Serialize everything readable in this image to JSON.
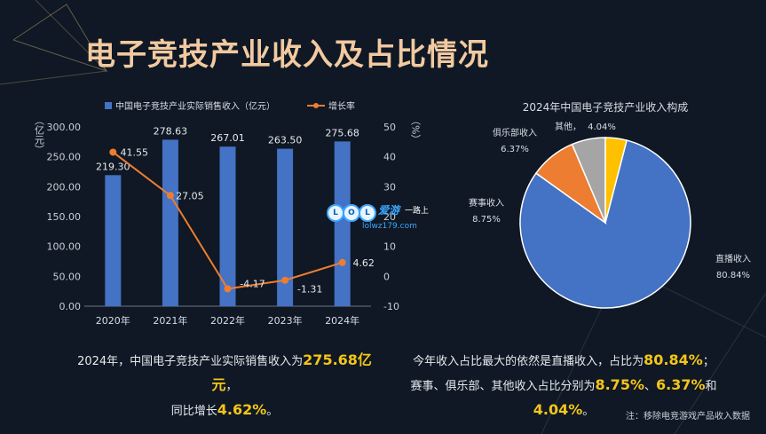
{
  "title": "电子竞技产业收入及占比情况",
  "colors": {
    "bar": "#4472c4",
    "line": "#ed7d31",
    "pie": [
      "#4472c4",
      "#ed7d31",
      "#a5a5a5",
      "#ffc000"
    ]
  },
  "chart_data": [
    {
      "type": "bar+line",
      "categories": [
        "2020年",
        "2021年",
        "2022年",
        "2023年",
        "2024年"
      ],
      "series": [
        {
          "name": "中国电子竞技产业实际销售收入（亿元）",
          "type": "bar",
          "axis": "left",
          "values": [
            219.3,
            278.63,
            267.01,
            263.5,
            275.68
          ],
          "labels": [
            "219.30",
            "278.63",
            "267.01",
            "263.50",
            "275.68"
          ]
        },
        {
          "name": "增长率",
          "type": "line",
          "axis": "right",
          "values": [
            41.55,
            27.05,
            -4.17,
            -1.31,
            4.62
          ],
          "labels": [
            "41.55",
            "27.05",
            "-4.17",
            "-1.31",
            "4.62"
          ]
        }
      ],
      "ylabel_left": "（亿元）",
      "ylabel_right": "（%）",
      "ylim_left": [
        0,
        300
      ],
      "ylim_right": [
        -10,
        50
      ],
      "yticks_left": [
        "0.00",
        "50.00",
        "100.00",
        "150.00",
        "200.00",
        "250.00",
        "300.00"
      ],
      "yticks_right": [
        "-10",
        "0",
        "10",
        "20",
        "30",
        "40",
        "50"
      ],
      "legend": "top"
    },
    {
      "type": "pie",
      "title": "2024年中国电子竞技产业收入构成",
      "slices": [
        {
          "name": "直播收入",
          "value": 80.84,
          "label": "80.84%"
        },
        {
          "name": "赛事收入",
          "value": 8.75,
          "label": "8.75%"
        },
        {
          "name": "俱乐部收入",
          "value": 6.37,
          "label": "6.37%"
        },
        {
          "name": "其他",
          "value": 4.04,
          "label": "4.04%"
        }
      ]
    }
  ],
  "summary_left": {
    "part1": "2024年，中国电子竞技产业实际销售收入为",
    "value1": "275.68亿元",
    "part2": "，",
    "part3": "同比增长",
    "value2": "4.62%",
    "part4": "。"
  },
  "summary_right": {
    "part1": "今年收入占比最大的依然是直播收入，占比为",
    "value1": "80.84%",
    "part2": "；",
    "part3": "赛事、俱乐部、其他收入占比分别为",
    "value2": "8.75%",
    "sep1": "、",
    "value3": "6.37%",
    "sep2": "和",
    "value4": "4.04%",
    "part4": "。"
  },
  "source": "注：移除电竞游戏产品收入数据",
  "watermark": {
    "letters": [
      "L",
      "O",
      "L"
    ],
    "brand": "爱游",
    "tag": "一路上",
    "url": "lolwz179.com"
  }
}
